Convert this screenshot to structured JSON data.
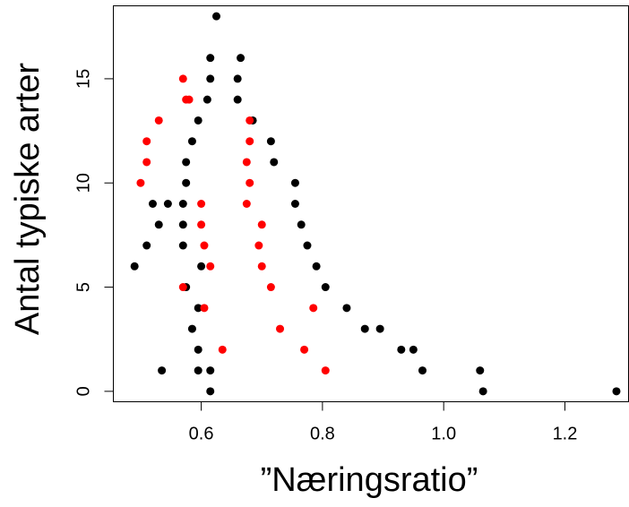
{
  "chart_data": {
    "type": "scatter",
    "title": "",
    "xlabel": "”Næringsratio”",
    "ylabel": "Antal typiske arter",
    "xlim": [
      0.455,
      1.305
    ],
    "ylim": [
      -0.5,
      18.5
    ],
    "x_ticks": [
      0.6,
      0.8,
      1.0,
      1.2
    ],
    "x_tick_labels": [
      "0.6",
      "0.8",
      "1.0",
      "1.2"
    ],
    "y_ticks": [
      0,
      5,
      10,
      15
    ],
    "y_tick_labels": [
      "0",
      "5",
      "10",
      "15"
    ],
    "grid": false,
    "legend": "none",
    "series": [
      {
        "color": "#000000",
        "rows": [
          {
            "y": 0,
            "points": [
              0.615,
              1.065,
              1.285
            ]
          },
          {
            "y": 1,
            "points": [
              0.535,
              0.595,
              0.615,
              0.965,
              1.06
            ]
          },
          {
            "y": 2,
            "points": [
              0.595,
              0.93,
              0.95
            ]
          },
          {
            "y": 3,
            "points": [
              0.585,
              0.87,
              0.895
            ]
          },
          {
            "y": 4,
            "points": [
              0.595,
              0.84
            ]
          },
          {
            "y": 5,
            "points": [
              0.575,
              0.805
            ]
          },
          {
            "y": 6,
            "points": [
              0.49,
              0.6,
              0.79
            ]
          },
          {
            "y": 7,
            "points": [
              0.51,
              0.57,
              0.775
            ]
          },
          {
            "y": 8,
            "points": [
              0.53,
              0.57,
              0.765
            ]
          },
          {
            "y": 9,
            "points": [
              0.52,
              0.545,
              0.57,
              0.755
            ]
          },
          {
            "y": 10,
            "points": [
              0.575,
              0.755
            ]
          },
          {
            "y": 11,
            "points": [
              0.575,
              0.72
            ]
          },
          {
            "y": 12,
            "points": [
              0.585,
              0.715
            ]
          },
          {
            "y": 13,
            "points": [
              0.595,
              0.685
            ]
          },
          {
            "y": 14,
            "points": [
              0.61,
              0.66
            ]
          },
          {
            "y": 15,
            "points": [
              0.615,
              0.66
            ]
          },
          {
            "y": 16,
            "points": [
              0.615,
              0.665
            ]
          },
          {
            "y": 18,
            "points": [
              0.625
            ]
          }
        ]
      },
      {
        "color": "#ff0000",
        "rows": [
          {
            "y": 1,
            "points": [
              0.805
            ]
          },
          {
            "y": 2,
            "points": [
              0.635,
              0.77
            ]
          },
          {
            "y": 3,
            "points": [
              0.73
            ]
          },
          {
            "y": 4,
            "points": [
              0.605,
              0.785
            ]
          },
          {
            "y": 5,
            "points": [
              0.57,
              0.715
            ]
          },
          {
            "y": 6,
            "points": [
              0.615,
              0.7
            ]
          },
          {
            "y": 7,
            "points": [
              0.605,
              0.695
            ]
          },
          {
            "y": 8,
            "points": [
              0.6,
              0.7
            ]
          },
          {
            "y": 9,
            "points": [
              0.6,
              0.675
            ]
          },
          {
            "y": 10,
            "points": [
              0.5,
              0.68
            ]
          },
          {
            "y": 11,
            "points": [
              0.51,
              0.675
            ]
          },
          {
            "y": 12,
            "points": [
              0.51,
              0.68
            ]
          },
          {
            "y": 13,
            "points": [
              0.53,
              0.68
            ]
          },
          {
            "y": 14,
            "points": [
              0.575,
              0.58
            ]
          },
          {
            "y": 15,
            "points": [
              0.57
            ]
          }
        ]
      }
    ]
  }
}
